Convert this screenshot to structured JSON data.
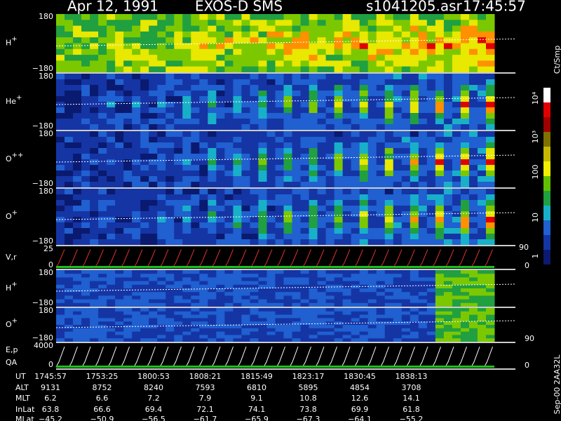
{
  "header": {
    "date": "Apr 12, 1991",
    "instrument": "EXOS-D SMS",
    "file": "s1041205.asr",
    "time": "17:45:57"
  },
  "panels": [
    {
      "label": "H",
      "sup": "+",
      "top": "180",
      "bottom": "−180"
    },
    {
      "label": "He",
      "sup": "+",
      "top": "180",
      "bottom": "−180"
    },
    {
      "label": "O",
      "sup": "++",
      "top": "180",
      "bottom": "−180"
    },
    {
      "label": "O",
      "sup": "+",
      "top": "180",
      "bottom": "−180"
    },
    {
      "label": "V,r",
      "top": "25",
      "bottom": "0",
      "right_top": "90",
      "right_bottom": "0"
    },
    {
      "label": "H",
      "sup": "+",
      "top": "180",
      "bottom": "−180"
    },
    {
      "label": "O",
      "sup": "+",
      "top": "180",
      "bottom": "−180",
      "right_bottom": "90"
    },
    {
      "label": "E,p",
      "label2": "QA",
      "top": "4000",
      "bottom": "0",
      "right_bottom": "0"
    }
  ],
  "colorbar": {
    "unit": "Ct/Smp",
    "labels": [
      "10⁴",
      "10³",
      "100",
      "10",
      "1"
    ]
  },
  "footer": {
    "rows": [
      {
        "name": "UT",
        "values": [
          "1745:57",
          "1753:25",
          "1800:53",
          "1808:21",
          "1815:49",
          "1823:17",
          "1830:45",
          "1838:13"
        ]
      },
      {
        "name": "ALT",
        "values": [
          "9131",
          "8752",
          "8240",
          "7593",
          "6810",
          "5895",
          "4854",
          "3708"
        ]
      },
      {
        "name": "MLT",
        "values": [
          "6.2",
          "6.6",
          "7.2",
          "7.9",
          "9.1",
          "10.8",
          "12.6",
          "14.1"
        ]
      },
      {
        "name": "InLat",
        "values": [
          "63.8",
          "66.6",
          "69.4",
          "72.1",
          "74.1",
          "73.8",
          "69.9",
          "61.8"
        ]
      },
      {
        "name": "MLat",
        "values": [
          "−45.2",
          "−50.9",
          "−56.5",
          "−61.7",
          "−65.9",
          "−67.3",
          "−64.1",
          "−55.2"
        ]
      }
    ]
  },
  "side_note": "Sep-00  2AA32L"
}
